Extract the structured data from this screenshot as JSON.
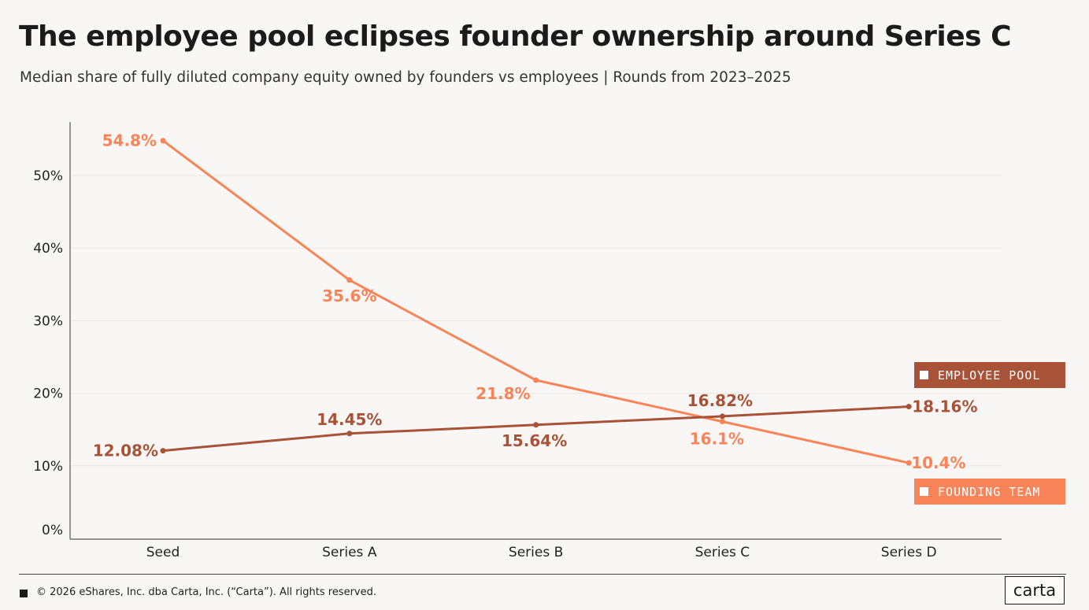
{
  "chart_data": {
    "type": "line",
    "title": "The employee pool eclipses founder ownership around Series C",
    "subtitle": "Median share of fully diluted company equity owned by founders vs employees | Rounds from 2023–2025",
    "categories": [
      "Seed",
      "Series A",
      "Series B",
      "Series C",
      "Series D"
    ],
    "ylim": [
      0,
      58
    ],
    "yticks": [
      0,
      10,
      20,
      30,
      40,
      50
    ],
    "ytick_labels": [
      "0%",
      "10%",
      "20%",
      "30%",
      "40%",
      "50%"
    ],
    "grid": true,
    "series": [
      {
        "name": "FOUNDING TEAM",
        "color": "#f9845a",
        "values": [
          54.8,
          35.6,
          21.8,
          16.1,
          10.4
        ],
        "labels": [
          "54.8%",
          "35.6%",
          "21.8%",
          "16.1%",
          "10.4%"
        ]
      },
      {
        "name": "EMPLOYEE POOL",
        "color": "#a85238",
        "values": [
          12.08,
          14.45,
          15.64,
          16.82,
          18.16
        ],
        "labels": [
          "12.08%",
          "14.45%",
          "15.64%",
          "16.82%",
          "18.16%"
        ]
      }
    ],
    "legend_position": "right"
  },
  "footer": {
    "copyright": "© 2026 eShares, Inc. dba Carta, Inc. (“Carta”). All rights reserved.",
    "brand": "carta"
  }
}
